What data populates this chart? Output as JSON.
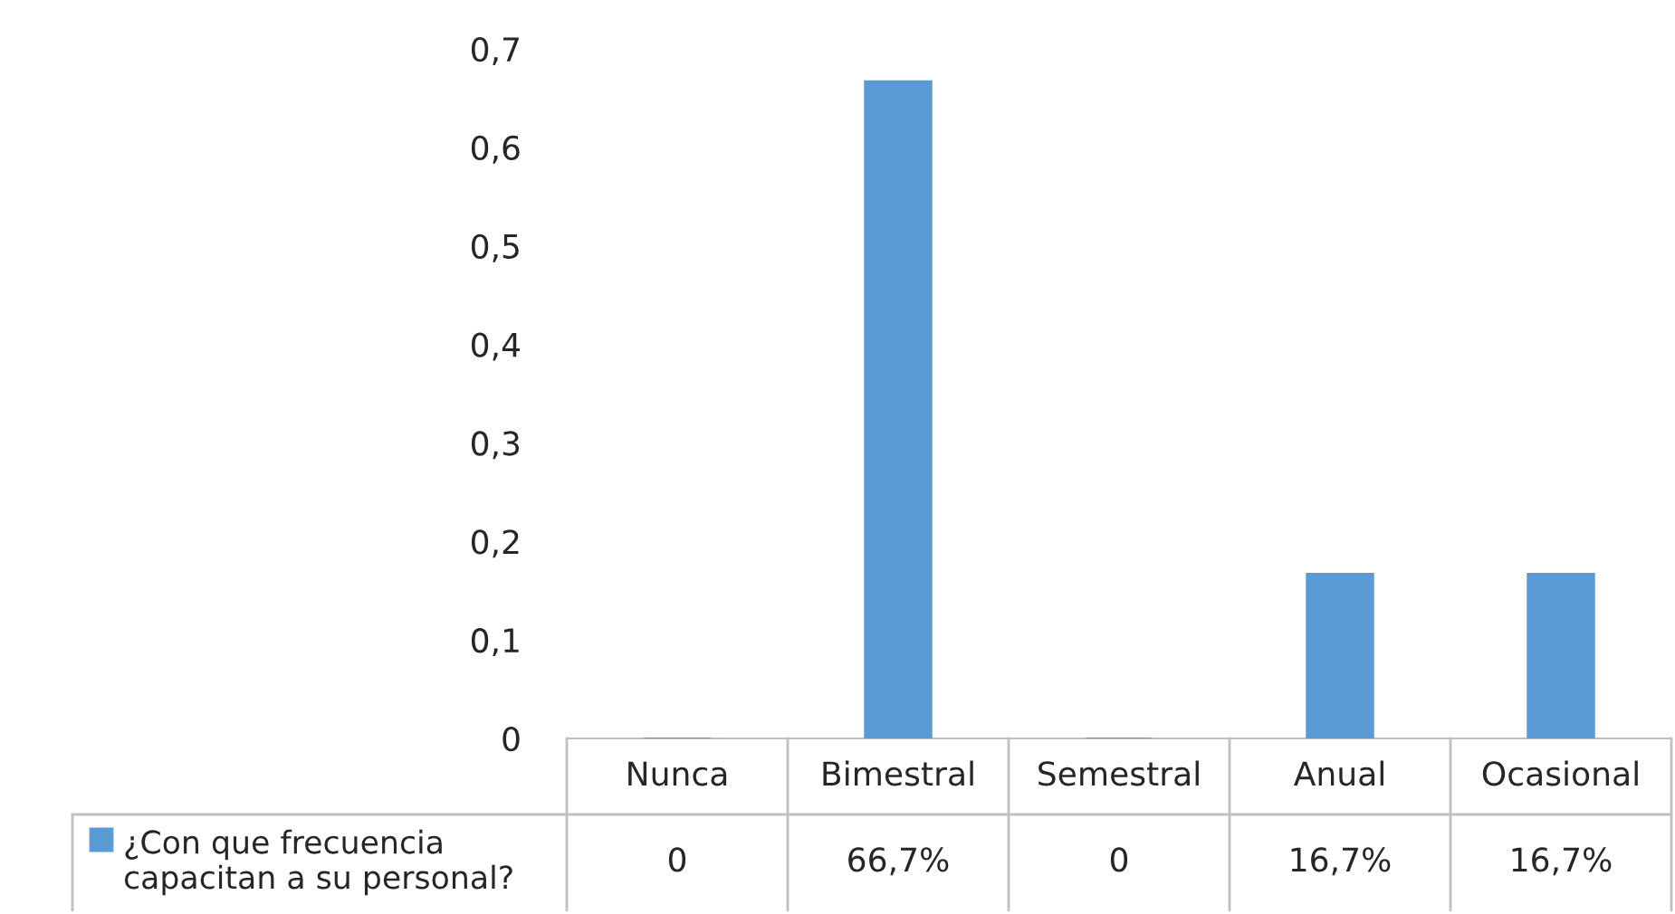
{
  "chart_data": {
    "type": "bar",
    "categories": [
      "Nunca",
      "Bimestral",
      "Semestral",
      "Anual",
      "Ocasional"
    ],
    "series": [
      {
        "name": "¿Con que frecuencia capacitan a su personal?",
        "color": "#5b9bd5",
        "values": [
          0,
          0.667,
          0,
          0.167,
          0.167
        ],
        "value_labels": [
          "0",
          "66,7%",
          "0",
          "16,7%",
          "16,7%"
        ]
      }
    ],
    "ylim": [
      0,
      0.7
    ],
    "yticks": [
      {
        "value": 0,
        "label": "0"
      },
      {
        "value": 0.1,
        "label": "0,1"
      },
      {
        "value": 0.2,
        "label": "0,2"
      },
      {
        "value": 0.3,
        "label": "0,3"
      },
      {
        "value": 0.4,
        "label": "0,4"
      },
      {
        "value": 0.5,
        "label": "0,5"
      },
      {
        "value": 0.6,
        "label": "0,6"
      },
      {
        "value": 0.7,
        "label": "0,7"
      }
    ],
    "grid": false,
    "legend": "bottom left"
  }
}
